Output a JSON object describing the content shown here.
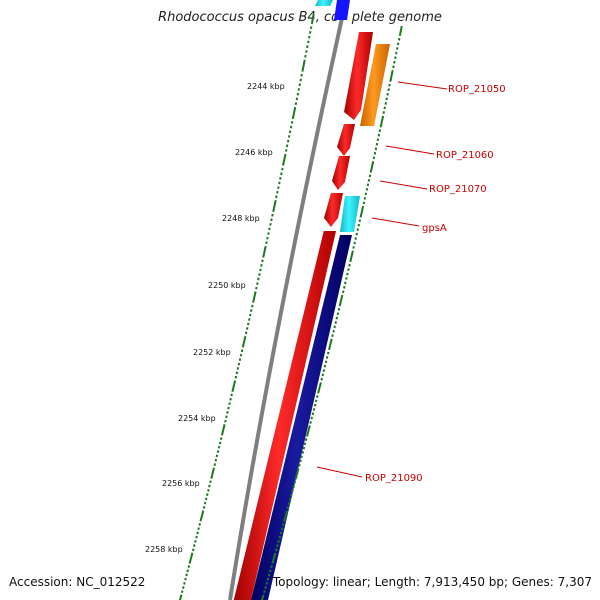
{
  "title": "Rhodococcus opacus B4, complete genome",
  "footer": {
    "accession": "Accession: NC_012522",
    "topology": "Topology: linear; Length: 7,913,450 bp; Genes: 7,307"
  },
  "colors": {
    "backbone": "#7f7f7f",
    "tick": "#1e7a1e",
    "gene_red": "#ff0000",
    "gene_orange": "#ff8c00",
    "gene_cyan": "#1ee6f0",
    "gene_navy": "#000080",
    "gene_blue": "#1414ff",
    "label": "#cc0000"
  },
  "kbp_labels": [
    "2244 kbp",
    "2246 kbp",
    "2248 kbp",
    "2250 kbp",
    "2252 kbp",
    "2254 kbp",
    "2256 kbp",
    "2258 kbp"
  ],
  "gene_labels": [
    "ROP_21050",
    "ROP_21060",
    "ROP_21070",
    "gpsA",
    "ROP_21090"
  ]
}
